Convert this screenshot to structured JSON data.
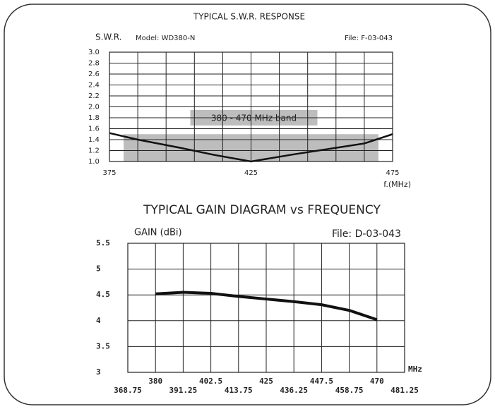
{
  "chart_data": [
    {
      "type": "line",
      "title": "TYPICAL S.W.R. RESPONSE",
      "ylabel": "S.W.R.",
      "model": "Model: WD380-N",
      "file": "File: F-03-043",
      "xlabel": "f.(MHz)",
      "x": [
        375,
        385,
        400,
        412,
        425,
        440,
        455,
        465,
        475
      ],
      "values": [
        1.52,
        1.4,
        1.25,
        1.12,
        1.0,
        1.13,
        1.25,
        1.33,
        1.5
      ],
      "color": "#111",
      "band": {
        "x": [
          380,
          470
        ],
        "y": 1.5,
        "label": "380 - 470 MHz band",
        "color": "#bdbdbd"
      },
      "xlim": [
        375,
        475
      ],
      "xticks": [
        375,
        425,
        475
      ],
      "xgrid": [
        375,
        385,
        395,
        405,
        415,
        425,
        435,
        445,
        455,
        465,
        475
      ],
      "ylim": [
        1.0,
        3.0
      ],
      "yticks": [
        {
          "value": 1.0,
          "label": "1.0"
        },
        1.2,
        1.4,
        1.6,
        1.8,
        {
          "value": 2.0,
          "label": "2.0"
        },
        2.2,
        2.4,
        2.6,
        2.8,
        {
          "value": 3.0,
          "label": "3.0"
        }
      ],
      "grid": true
    },
    {
      "type": "line",
      "title": "TYPICAL GAIN DIAGRAM vs FREQUENCY",
      "ylabel": "GAIN (dBi)",
      "file": "File:  D-03-043",
      "xlabel": "MHz",
      "x": [
        380,
        391.25,
        402.5,
        413.75,
        425,
        436.25,
        447.5,
        458.75,
        470
      ],
      "values": [
        4.52,
        4.55,
        4.53,
        4.47,
        4.42,
        4.37,
        4.31,
        4.2,
        4.02
      ],
      "color": "#111",
      "xlim": [
        368.75,
        481.25
      ],
      "xticks": [
        368.75,
        380,
        391.25,
        402.5,
        413.75,
        425,
        436.25,
        447.5,
        458.75,
        470,
        481.25
      ],
      "ylim": [
        3,
        5.5
      ],
      "yticks": [
        3,
        3.5,
        4,
        4.5,
        5,
        5.5
      ],
      "grid": true
    }
  ]
}
